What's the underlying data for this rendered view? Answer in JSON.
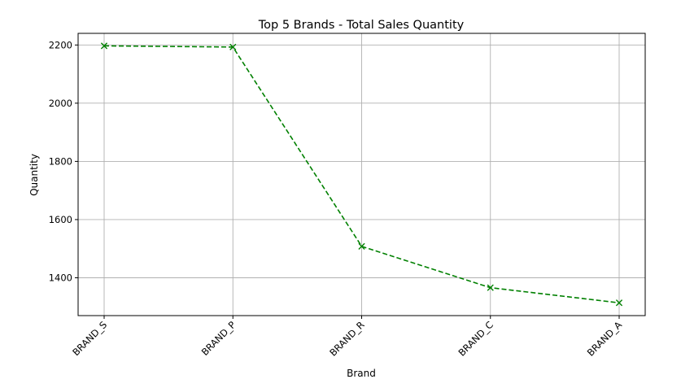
{
  "chart_data": {
    "type": "line",
    "title": "Top 5 Brands - Total Sales Quantity",
    "xlabel": "Brand",
    "ylabel": "Quantity",
    "categories": [
      "BRAND_S",
      "BRAND_P",
      "BRAND_R",
      "BRAND_C",
      "BRAND_A"
    ],
    "series": [
      {
        "values": [
          2197,
          2193,
          1508,
          1366,
          1314
        ],
        "color": "#008000",
        "line_style": "dashed",
        "marker": "x"
      }
    ],
    "ylim": [
      1270,
      2240
    ],
    "yticks": [
      1400,
      1600,
      1800,
      2000,
      2200
    ],
    "grid": true
  }
}
